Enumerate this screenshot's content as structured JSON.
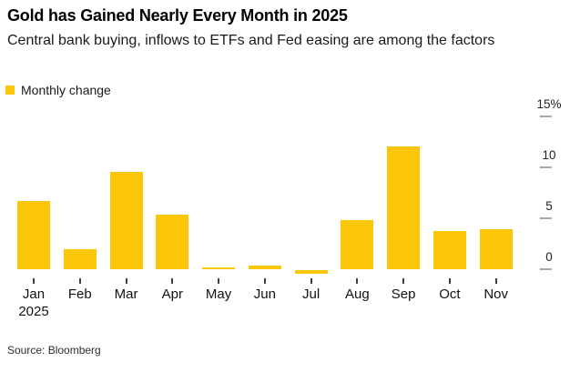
{
  "header": {
    "title": "Gold has Gained Nearly Every Month in 2025",
    "subtitle": "Central bank buying, inflows to ETFs and Fed easing are among the factors"
  },
  "legend": {
    "label": "Monthly change"
  },
  "footer": {
    "source": "Source: Bloomberg"
  },
  "colors": {
    "bar": "#fbc508",
    "y_tick_dash": "#a8a8a8",
    "x_tick_dash": "#3f3f3f",
    "background": "#ffffff"
  },
  "chart_data": {
    "type": "bar",
    "title": "Gold has Gained Nearly Every Month in 2025",
    "subtitle": "Central bank buying, inflows to ETFs and Fed easing are among the factors",
    "legend": [
      "Monthly change"
    ],
    "legend_position": "top-left",
    "categories": [
      "Jan",
      "Feb",
      "Mar",
      "Apr",
      "May",
      "Jun",
      "Jul",
      "Aug",
      "Sep",
      "Oct",
      "Nov"
    ],
    "x_sublabels": {
      "Jan": "2025"
    },
    "values": [
      6.7,
      2.0,
      9.5,
      5.3,
      0.15,
      0.4,
      -0.4,
      4.8,
      12.0,
      3.7,
      3.9
    ],
    "unit": "%",
    "xlabel": "",
    "ylabel": "",
    "y_axis_position": "right",
    "y_ticks": [
      0,
      5,
      10,
      15
    ],
    "y_tick_labels": [
      "0",
      "5",
      "10",
      "15%"
    ],
    "ylim": [
      -1,
      16
    ],
    "grid": false,
    "bar_color": "#fbc508",
    "source": "Source: Bloomberg"
  }
}
